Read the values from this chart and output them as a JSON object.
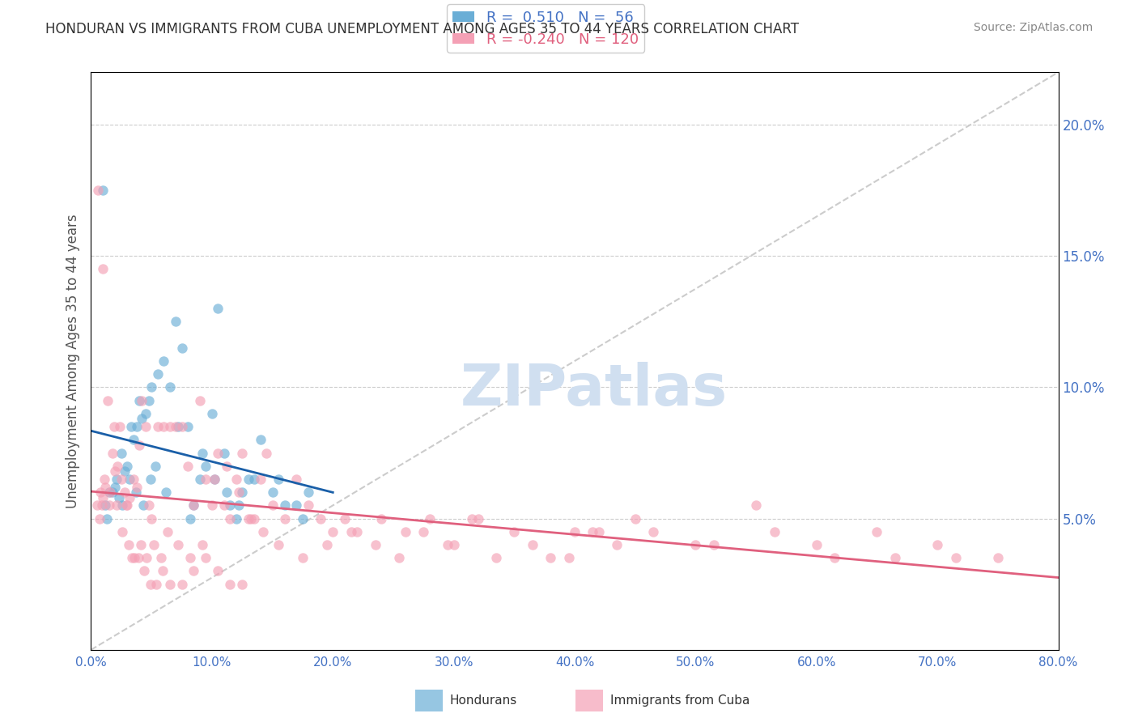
{
  "title": "HONDURAN VS IMMIGRANTS FROM CUBA UNEMPLOYMENT AMONG AGES 35 TO 44 YEARS CORRELATION CHART",
  "source_text": "Source: ZipAtlas.com",
  "ylabel": "Unemployment Among Ages 35 to 44 years",
  "xlabel_ticks": [
    "0.0%",
    "10.0%",
    "20.0%",
    "30.0%",
    "40.0%",
    "50.0%",
    "60.0%",
    "70.0%",
    "80.0%"
  ],
  "xlabel_vals": [
    0,
    10,
    20,
    30,
    40,
    50,
    60,
    70,
    80
  ],
  "ylabel_ticks_right": [
    "5.0%",
    "10.0%",
    "15.0%",
    "20.0%"
  ],
  "ylabel_vals": [
    5,
    10,
    15,
    20
  ],
  "xlim": [
    0,
    80
  ],
  "ylim": [
    0,
    22
  ],
  "r_honduran": 0.51,
  "n_honduran": 56,
  "r_cuba": -0.24,
  "n_cuba": 120,
  "color_honduran": "#6aaed6",
  "color_cuba": "#f4a0b5",
  "color_trendline_honduran": "#1a5fa8",
  "color_trendline_cuba": "#e0607e",
  "color_diagonal": "#cccccc",
  "watermark_text": "ZIPatlas",
  "watermark_color": "#d0dff0",
  "honduran_x": [
    1.2,
    1.5,
    2.0,
    2.3,
    2.5,
    2.8,
    3.0,
    3.2,
    3.5,
    3.8,
    4.0,
    4.2,
    4.5,
    4.8,
    5.0,
    5.5,
    6.0,
    6.5,
    7.0,
    7.5,
    8.0,
    8.5,
    9.0,
    9.5,
    10.0,
    10.5,
    11.0,
    11.5,
    12.0,
    12.5,
    13.0,
    14.0,
    15.0,
    16.0,
    17.0,
    18.0,
    1.0,
    1.3,
    1.8,
    2.1,
    2.6,
    3.3,
    3.7,
    4.3,
    4.9,
    5.3,
    6.2,
    7.2,
    8.2,
    9.2,
    10.2,
    11.2,
    12.2,
    13.5,
    15.5,
    17.5
  ],
  "honduran_y": [
    5.5,
    6.0,
    6.2,
    5.8,
    7.5,
    6.8,
    7.0,
    6.5,
    8.0,
    8.5,
    9.5,
    8.8,
    9.0,
    9.5,
    10.0,
    10.5,
    11.0,
    10.0,
    12.5,
    11.5,
    8.5,
    5.5,
    6.5,
    7.0,
    9.0,
    13.0,
    7.5,
    5.5,
    5.0,
    6.0,
    6.5,
    8.0,
    6.0,
    5.5,
    5.5,
    6.0,
    17.5,
    5.0,
    6.0,
    6.5,
    5.5,
    8.5,
    6.0,
    5.5,
    6.5,
    7.0,
    6.0,
    8.5,
    5.0,
    7.5,
    6.5,
    6.0,
    5.5,
    6.5,
    6.5,
    5.0
  ],
  "cuba_x": [
    0.5,
    0.8,
    1.0,
    1.2,
    1.5,
    1.8,
    2.0,
    2.2,
    2.5,
    2.8,
    3.0,
    3.2,
    3.5,
    3.8,
    4.0,
    4.2,
    4.5,
    4.8,
    5.0,
    5.5,
    6.0,
    6.5,
    7.0,
    7.5,
    8.0,
    8.5,
    9.0,
    9.5,
    10.0,
    10.5,
    11.0,
    11.5,
    12.0,
    12.5,
    13.0,
    13.5,
    14.0,
    14.5,
    15.0,
    16.0,
    17.0,
    18.0,
    19.0,
    20.0,
    21.0,
    22.0,
    24.0,
    26.0,
    28.0,
    30.0,
    32.0,
    35.0,
    38.0,
    40.0,
    42.0,
    45.0,
    50.0,
    55.0,
    60.0,
    65.0,
    70.0,
    75.0,
    0.7,
    1.1,
    1.6,
    2.1,
    2.6,
    3.1,
    3.6,
    4.1,
    4.6,
    5.2,
    5.8,
    6.3,
    7.2,
    8.2,
    9.2,
    10.2,
    11.2,
    12.2,
    13.2,
    14.2,
    15.5,
    17.5,
    19.5,
    21.5,
    23.5,
    25.5,
    27.5,
    29.5,
    31.5,
    33.5,
    36.5,
    39.5,
    41.5,
    43.5,
    46.5,
    51.5,
    56.5,
    61.5,
    66.5,
    71.5,
    0.6,
    1.0,
    1.4,
    1.9,
    2.4,
    2.9,
    3.4,
    3.9,
    4.4,
    4.9,
    5.4,
    5.9,
    6.5,
    7.5,
    8.5,
    9.5,
    10.5,
    11.5,
    12.5,
    0.9
  ],
  "cuba_y": [
    5.5,
    6.0,
    5.8,
    6.2,
    5.5,
    7.5,
    6.8,
    7.0,
    6.5,
    6.0,
    5.5,
    5.8,
    6.5,
    6.2,
    7.8,
    9.5,
    8.5,
    5.5,
    5.0,
    8.5,
    8.5,
    8.5,
    8.5,
    8.5,
    7.0,
    5.5,
    9.5,
    6.5,
    5.5,
    7.5,
    5.5,
    5.0,
    6.5,
    7.5,
    5.0,
    5.0,
    6.5,
    7.5,
    5.5,
    5.0,
    6.5,
    5.5,
    5.0,
    4.5,
    5.0,
    4.5,
    5.0,
    4.5,
    5.0,
    4.0,
    5.0,
    4.5,
    3.5,
    4.5,
    4.5,
    5.0,
    4.0,
    5.5,
    4.0,
    4.5,
    4.0,
    3.5,
    5.0,
    6.5,
    6.0,
    5.5,
    4.5,
    4.0,
    3.5,
    4.0,
    3.5,
    4.0,
    3.5,
    4.5,
    4.0,
    3.5,
    4.0,
    6.5,
    7.0,
    6.0,
    5.0,
    4.5,
    4.0,
    3.5,
    4.0,
    4.5,
    4.0,
    3.5,
    4.5,
    4.0,
    5.0,
    3.5,
    4.0,
    3.5,
    4.5,
    4.0,
    4.5,
    4.0,
    4.5,
    3.5,
    3.5,
    3.5,
    17.5,
    14.5,
    9.5,
    8.5,
    8.5,
    5.5,
    3.5,
    3.5,
    3.0,
    2.5,
    2.5,
    3.0,
    2.5,
    2.5,
    3.0,
    3.5,
    3.0,
    2.5,
    2.5,
    5.5
  ]
}
